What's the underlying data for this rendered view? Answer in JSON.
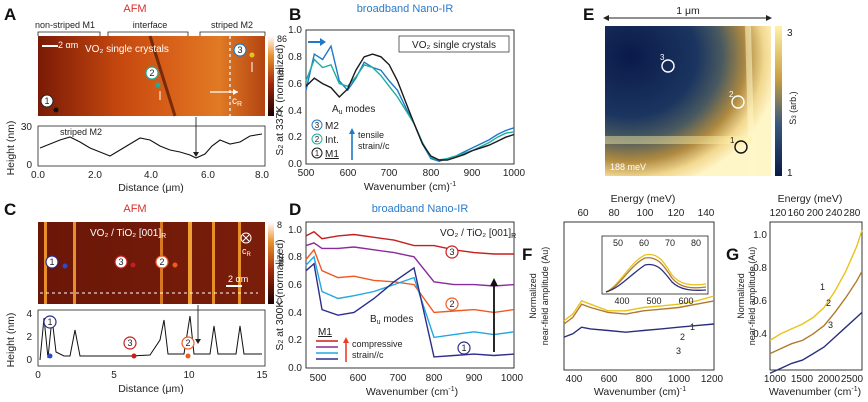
{
  "panels": {
    "a": {
      "letter": "A",
      "title": "AFM",
      "regions": [
        "non-striped M1",
        "interface",
        "striped M2"
      ],
      "cbar_label": "nm",
      "cbar_ticks": [
        "86",
        "0"
      ],
      "scale_bar": "2 αm",
      "inset_text": "VO₂ single crystals",
      "axis_label": "c",
      "axis_sub": "R",
      "markers": [
        "1",
        "2",
        "3"
      ],
      "profile_label": "striped M2",
      "ylabel": "Height (nm)",
      "xlabel": "Distance (μm)",
      "yticks": [
        "30",
        "0"
      ],
      "xticks": [
        "0.0",
        "2.0",
        "4.0",
        "6.0",
        "8.0"
      ]
    },
    "b": {
      "letter": "B",
      "title": "broadband Nano-IR",
      "box_text": "VO₂ single crystals",
      "mode_label": "A",
      "mode_sub": "u",
      "mode_suffix": " modes",
      "legend": [
        "M2",
        "Int.",
        "M1"
      ],
      "legend_markers": [
        "3",
        "2",
        "1"
      ],
      "strain_text": [
        "tensile",
        "strain//c"
      ],
      "ylabel_main": "S",
      "ylabel_sub": "2",
      "ylabel_rest": " at 337K (normalized)",
      "xlabel": "Wavenumber (cm)",
      "xlabel_sup": "-1",
      "yticks": [
        "0.0",
        "0.2",
        "0.4",
        "0.6",
        "0.8",
        "1.0"
      ],
      "xticks": [
        "500",
        "600",
        "700",
        "800",
        "900",
        "1000"
      ]
    },
    "c": {
      "letter": "C",
      "title": "AFM",
      "inset_text": "VO₂ / TiO₂ [001]",
      "inset_sub": "R",
      "cbar_label": "nm",
      "cbar_ticks": [
        "8",
        "0"
      ],
      "scale_bar": "2 αm",
      "axis_label": "c",
      "axis_sub": "R",
      "markers": [
        "1",
        "3",
        "2"
      ],
      "ylabel": "Height (nm)",
      "xlabel": "Distance (μm)",
      "yticks": [
        "4",
        "2",
        "0"
      ],
      "xticks": [
        "0",
        "5",
        "10",
        "15"
      ]
    },
    "d": {
      "letter": "D",
      "title": "broadband Nano-IR",
      "box_text": "VO₂ / TiO₂ [001]",
      "box_sub": "R",
      "mode_label": "B",
      "mode_sub": "u",
      "mode_suffix": " modes",
      "legend_title": "M1",
      "strain_text": [
        "compressive",
        "strain//c"
      ],
      "markers": [
        "3",
        "2",
        "1"
      ],
      "ylabel_main": "S",
      "ylabel_sub": "2",
      "ylabel_rest": " at 300K (normalized)",
      "xlabel": "Wavenumber (cm",
      "xlabel_sup": "-1",
      "xlabel_end": ")",
      "yticks": [
        "0.0",
        "0.2",
        "0.4",
        "0.6",
        "0.8",
        "1.0"
      ],
      "xticks": [
        "500",
        "600",
        "700",
        "800",
        "900",
        "1000"
      ]
    },
    "e": {
      "letter": "E",
      "scale_text": "1 μm",
      "energy_label": "188 meV",
      "markers": [
        "3",
        "2",
        "1"
      ],
      "cbar_label": "S",
      "cbar_sub": "3",
      "cbar_rest": " (arb.)",
      "cbar_ticks": [
        "3",
        "1"
      ]
    },
    "f": {
      "letter": "F",
      "top_label": "Energy (meV)",
      "top_ticks": [
        "60",
        "80",
        "100",
        "120",
        "140"
      ],
      "ylabel": [
        "Normalized",
        "near-field amplitude (Au)"
      ],
      "xlabel": "Wavenumber (cm)",
      "xlabel_sup": "-1",
      "xticks": [
        "400",
        "600",
        "800",
        "1000",
        "1200"
      ],
      "curve_labels": [
        "1",
        "2",
        "3"
      ],
      "inset_top_ticks": [
        "50",
        "60",
        "70",
        "80"
      ],
      "inset_bottom_ticks": [
        "400",
        "500",
        "600"
      ]
    },
    "g": {
      "letter": "G",
      "top_label": "Energy (meV)",
      "top_ticks": [
        "120",
        "160",
        "200",
        "240",
        "280"
      ],
      "ylabel": [
        "Normalized",
        "near-field amplitude (Au)"
      ],
      "xlabel": "Wavenumber (cm",
      "xlabel_sup": "-1",
      "xlabel_end": ")",
      "xticks": [
        "1000",
        "1500",
        "2000",
        "2500"
      ],
      "yticks": [
        "0.4",
        "0.6",
        "0.8",
        "1.0"
      ],
      "curve_labels": [
        "1",
        "2",
        "3"
      ]
    }
  },
  "colors": {
    "blue_title": "#2a7bc9",
    "red_title": "#d6312e",
    "m2": "#1f78c8",
    "int": "#1fae9c",
    "m1": "#1a1a1a",
    "d_red": "#c81e1e",
    "d_purple": "#8a2a9c",
    "d_orange": "#ef5a22",
    "d_cyan": "#22a7df",
    "d_navy": "#2d2d8c",
    "f_yellow": "#e8c31c",
    "f_brown": "#b07a2e",
    "f_navy": "#2b2f7a"
  },
  "chart_data": [
    {
      "panel": "B",
      "type": "line",
      "title": "broadband Nano-IR",
      "xlabel": "Wavenumber (cm-1)",
      "ylabel": "S2 at 337K (normalized)",
      "xlim": [
        500,
        1000
      ],
      "ylim": [
        0,
        1.0
      ],
      "series": [
        {
          "name": "M2",
          "x": [
            500,
            520,
            540,
            560,
            580,
            600,
            620,
            640,
            660,
            680,
            700,
            720,
            740,
            760,
            780,
            800,
            820,
            840,
            860,
            880,
            900,
            920,
            940,
            960,
            980,
            1000
          ],
          "y": [
            0.55,
            0.82,
            0.78,
            0.88,
            0.62,
            0.55,
            0.64,
            0.76,
            0.72,
            0.7,
            0.62,
            0.55,
            0.42,
            0.3,
            0.15,
            0.04,
            0.02,
            0.04,
            0.06,
            0.09,
            0.12,
            0.15,
            0.18,
            0.22,
            0.25,
            0.27
          ]
        },
        {
          "name": "Int.",
          "x": [
            500,
            520,
            540,
            560,
            580,
            600,
            620,
            640,
            660,
            680,
            700,
            720,
            740,
            760,
            780,
            800,
            820,
            840,
            860,
            880,
            900,
            920,
            940,
            960,
            980,
            1000
          ],
          "y": [
            0.62,
            0.78,
            0.72,
            0.74,
            0.6,
            0.58,
            0.65,
            0.74,
            0.72,
            0.66,
            0.58,
            0.5,
            0.4,
            0.3,
            0.16,
            0.05,
            0.03,
            0.04,
            0.06,
            0.08,
            0.1,
            0.13,
            0.16,
            0.2,
            0.23,
            0.24
          ]
        },
        {
          "name": "M1",
          "x": [
            500,
            520,
            540,
            560,
            580,
            600,
            620,
            640,
            660,
            680,
            700,
            720,
            740,
            760,
            780,
            800,
            820,
            840,
            860,
            880,
            900,
            920,
            940,
            960,
            980,
            1000
          ],
          "y": [
            0.58,
            0.64,
            0.6,
            0.57,
            0.5,
            0.56,
            0.7,
            0.8,
            0.82,
            0.8,
            0.74,
            0.62,
            0.46,
            0.3,
            0.15,
            0.06,
            0.03,
            0.03,
            0.05,
            0.07,
            0.1,
            0.12,
            0.14,
            0.17,
            0.2,
            0.22
          ]
        }
      ]
    },
    {
      "panel": "D",
      "type": "line",
      "title": "broadband Nano-IR",
      "xlabel": "Wavenumber (cm-1)",
      "ylabel": "S2 at 300K (normalized)",
      "xlim": [
        480,
        1000
      ],
      "ylim": [
        0,
        1.05
      ],
      "series": [
        {
          "name": "3",
          "x": [
            480,
            500,
            520,
            560,
            600,
            650,
            700,
            750,
            800,
            850,
            900,
            950,
            1000
          ],
          "y": [
            0.95,
            0.98,
            0.93,
            0.95,
            0.96,
            0.94,
            0.92,
            0.88,
            0.88,
            0.85,
            0.83,
            0.82,
            0.82
          ]
        },
        {
          "name": "",
          "x": [
            480,
            500,
            520,
            560,
            600,
            650,
            700,
            750,
            800,
            850,
            900,
            950,
            1000
          ],
          "y": [
            0.88,
            0.9,
            0.86,
            0.86,
            0.87,
            0.85,
            0.83,
            0.8,
            0.62,
            0.6,
            0.6,
            0.59,
            0.6
          ]
        },
        {
          "name": "2",
          "x": [
            480,
            500,
            520,
            560,
            600,
            650,
            700,
            750,
            800,
            850,
            900,
            950,
            1000
          ],
          "y": [
            0.78,
            0.85,
            0.7,
            0.65,
            0.66,
            0.63,
            0.62,
            0.6,
            0.4,
            0.41,
            0.42,
            0.4,
            0.42
          ]
        },
        {
          "name": "",
          "x": [
            480,
            500,
            520,
            560,
            600,
            650,
            700,
            750,
            800,
            850,
            900,
            950,
            1000
          ],
          "y": [
            0.74,
            0.8,
            0.55,
            0.5,
            0.52,
            0.55,
            0.6,
            0.65,
            0.22,
            0.24,
            0.26,
            0.24,
            0.26
          ]
        },
        {
          "name": "1",
          "x": [
            480,
            500,
            520,
            560,
            600,
            650,
            700,
            750,
            800,
            850,
            900,
            950,
            1000
          ],
          "y": [
            0.7,
            0.75,
            0.42,
            0.38,
            0.4,
            0.5,
            0.62,
            0.72,
            0.08,
            0.09,
            0.1,
            0.09,
            0.1
          ]
        }
      ]
    },
    {
      "panel": "F",
      "type": "line",
      "xlabel": "Wavenumber (cm-1)",
      "ylabel": "Normalized near-field amplitude (Au)",
      "xlim": [
        350,
        1200
      ],
      "series": [
        {
          "name": "1",
          "x": [
            350,
            400,
            450,
            500,
            600,
            700,
            800,
            900,
            1000,
            1100,
            1200
          ],
          "y": [
            0.3,
            0.34,
            0.42,
            0.4,
            0.36,
            0.36,
            0.38,
            0.39,
            0.4,
            0.42,
            0.45
          ]
        },
        {
          "name": "2",
          "x": [
            350,
            400,
            450,
            500,
            600,
            700,
            800,
            900,
            1000,
            1100,
            1200
          ],
          "y": [
            0.28,
            0.32,
            0.4,
            0.38,
            0.35,
            0.34,
            0.36,
            0.37,
            0.38,
            0.4,
            0.42
          ]
        },
        {
          "name": "3",
          "x": [
            350,
            400,
            450,
            500,
            600,
            700,
            800,
            900,
            1000,
            1100,
            1200
          ],
          "y": [
            0.2,
            0.22,
            0.26,
            0.25,
            0.24,
            0.23,
            0.24,
            0.25,
            0.26,
            0.27,
            0.28
          ]
        }
      ]
    },
    {
      "panel": "G",
      "type": "line",
      "xlabel": "Wavenumber (cm-1)",
      "ylabel": "Normalized near-field amplitude (Au)",
      "xlim": [
        800,
        2500
      ],
      "ylim": [
        0.2,
        1.1
      ],
      "series": [
        {
          "name": "1",
          "x": [
            800,
            1000,
            1200,
            1400,
            1600,
            1800,
            2000,
            2200,
            2400,
            2500
          ],
          "y": [
            0.38,
            0.42,
            0.45,
            0.48,
            0.52,
            0.58,
            0.68,
            0.8,
            0.95,
            1.05
          ]
        },
        {
          "name": "2",
          "x": [
            800,
            1000,
            1200,
            1400,
            1600,
            1800,
            2000,
            2200,
            2400,
            2500
          ],
          "y": [
            0.3,
            0.33,
            0.36,
            0.38,
            0.42,
            0.47,
            0.55,
            0.64,
            0.74,
            0.8
          ]
        },
        {
          "name": "3",
          "x": [
            800,
            1000,
            1200,
            1400,
            1600,
            1800,
            2000,
            2200,
            2400,
            2500
          ],
          "y": [
            0.18,
            0.21,
            0.24,
            0.26,
            0.3,
            0.34,
            0.4,
            0.46,
            0.52,
            0.55
          ]
        }
      ]
    }
  ]
}
